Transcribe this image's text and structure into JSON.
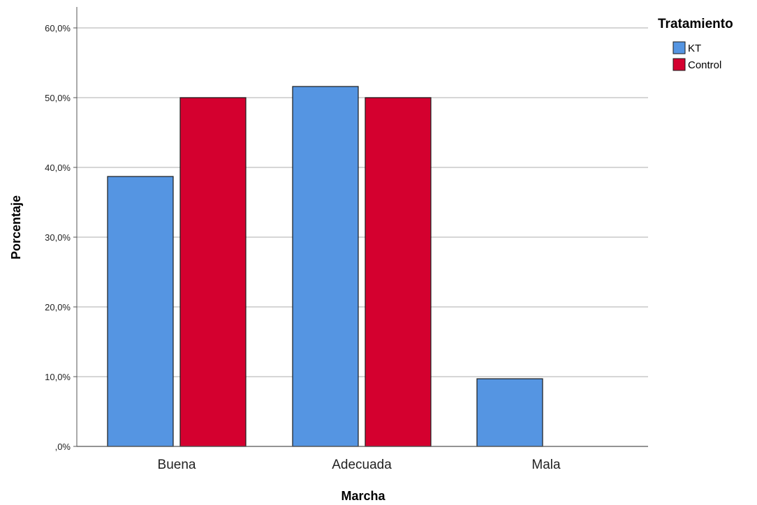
{
  "chart_data": {
    "type": "bar",
    "xlabel": "Marcha",
    "ylabel": "Porcentaje",
    "categories": [
      "Buena",
      "Adecuada",
      "Mala"
    ],
    "series": [
      {
        "name": "KT",
        "values": [
          38.7,
          51.6,
          9.7
        ],
        "color": "#5595e2"
      },
      {
        "name": "Control",
        "values": [
          50.0,
          50.0,
          0.0
        ],
        "color": "#d4002f"
      }
    ],
    "ylim": [
      0,
      63
    ],
    "yticks": [
      0,
      10,
      20,
      30,
      40,
      50,
      60
    ],
    "ytick_labels": [
      ",0%",
      "10,0%",
      "20,0%",
      "30,0%",
      "40,0%",
      "50,0%",
      "60,0%"
    ],
    "grid": true,
    "legend": {
      "title": "Tratamiento",
      "position": "top-right"
    }
  }
}
